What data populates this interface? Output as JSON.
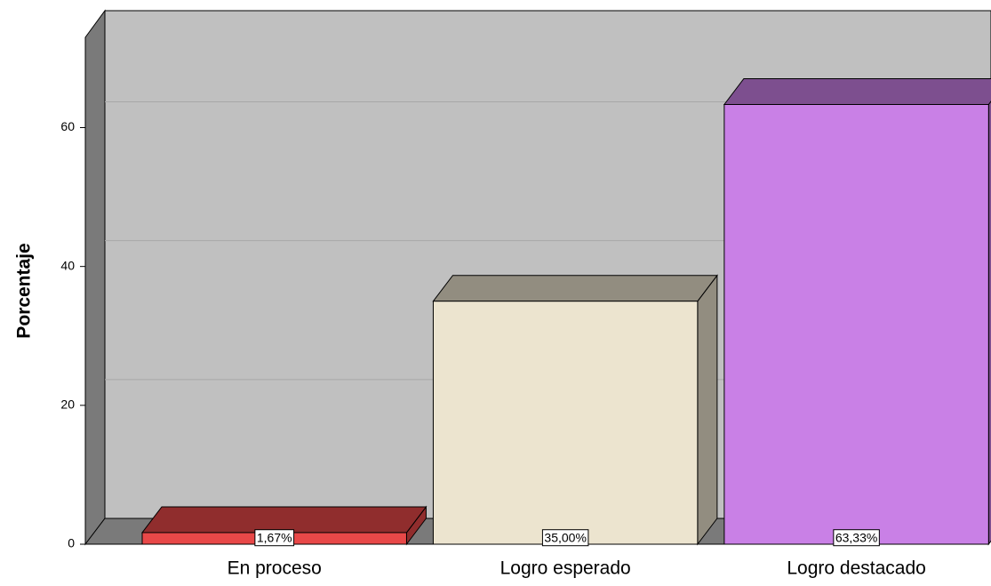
{
  "chart_data": {
    "type": "bar3d",
    "categories": [
      "En proceso",
      "Logro esperado",
      "Logro destacado"
    ],
    "values": [
      1.67,
      35.0,
      63.33
    ],
    "value_labels": [
      "1,67%",
      "35,00%",
      "63,33%"
    ],
    "colors": [
      "#e84848",
      "#ece4cf",
      "#c980e6"
    ],
    "ylabel": "Porcentaje",
    "ylim": [
      0,
      73
    ],
    "yticks": [
      0,
      20,
      40,
      60
    ],
    "grid": true
  }
}
